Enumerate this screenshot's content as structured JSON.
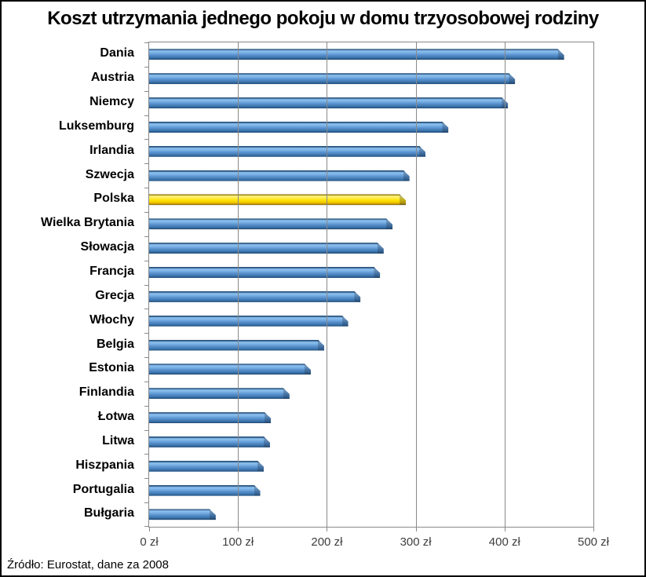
{
  "title": "Koszt utrzymania jednego pokoju w domu trzyosobowej rodziny",
  "source": "Źródło: Eurostat, dane za 2008",
  "colors": {
    "bar": "#4E8CCB",
    "highlight": "#FFE100",
    "gridline": "#898989",
    "title_text": "#000000",
    "axis_text": "#3F3F3F"
  },
  "chart_data": {
    "type": "bar",
    "orientation": "horizontal",
    "title": "Koszt utrzymania jednego pokoju w domu trzyosobowej rodziny",
    "xlabel": "",
    "ylabel": "",
    "unit": "zł",
    "xlim": [
      0,
      500
    ],
    "grid": true,
    "legend": false,
    "highlight_category": "Polska",
    "x_ticks": [
      "0 zł",
      "100 zł",
      "200 zł",
      "300 zł",
      "400 zł",
      "500 zł"
    ],
    "categories": [
      "Dania",
      "Austria",
      "Niemcy",
      "Luksemburg",
      "Irlandia",
      "Szwecja",
      "Polska",
      "Wielka Brytania",
      "Słowacja",
      "Francja",
      "Grecja",
      "Włochy",
      "Belgia",
      "Estonia",
      "Finlandia",
      "Łotwa",
      "Litwa",
      "Hiszpania",
      "Portugalia",
      "Bułgaria"
    ],
    "values": [
      467,
      412,
      404,
      337,
      311,
      293,
      289,
      274,
      264,
      260,
      238,
      224,
      197,
      182,
      158,
      137,
      136,
      129,
      125,
      75
    ],
    "source_note": "Źródło: Eurostat, dane za 2008"
  }
}
